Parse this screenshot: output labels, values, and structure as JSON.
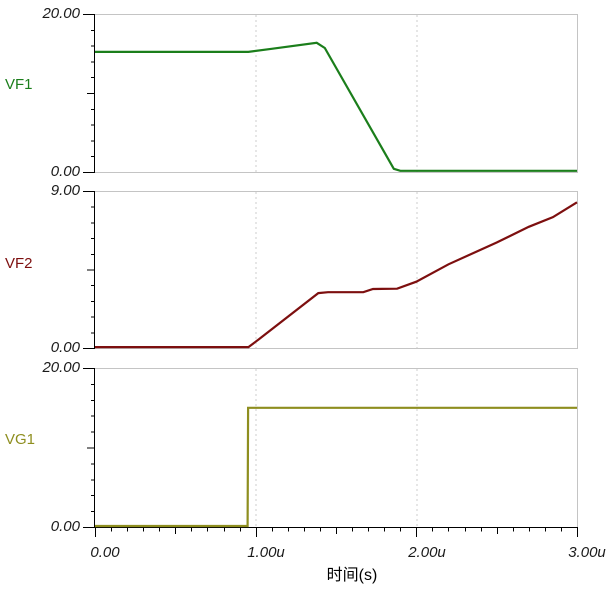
{
  "colors": {
    "background": "#ffffff",
    "axis": "#000000",
    "panel_border": "#c4c4c4",
    "grid_dashed": "#cccccc",
    "tick_label": "#1a1a1a",
    "vf1": "#1b7e1b",
    "vf2": "#7d0f0f",
    "vg1": "#8e8e1f"
  },
  "chart_data": {
    "type": "line",
    "xlabel": "时间(s)",
    "x_unit": "u",
    "xlim": [
      0,
      3
    ],
    "x_ticks": [
      0,
      1,
      2,
      3
    ],
    "x_tick_labels": [
      "0.00",
      "1.00u",
      "2.00u",
      "3.00u"
    ],
    "x_minor_step": 0.1,
    "grid_vlines": [
      1,
      2
    ],
    "legend_position": "left",
    "panels": [
      {
        "label": "VF1",
        "color": "#1b7e1b",
        "ylim": [
          0,
          20
        ],
        "ymax_label": "20.00",
        "ymin_label": "0.00",
        "points": [
          [
            0,
            15.2
          ],
          [
            0.955,
            15.2
          ],
          [
            1.1,
            15.6
          ],
          [
            1.38,
            16.35
          ],
          [
            1.43,
            15.7
          ],
          [
            1.86,
            0.4
          ],
          [
            1.9,
            0.15
          ],
          [
            3,
            0.15
          ]
        ]
      },
      {
        "label": "VF2",
        "color": "#7d0f0f",
        "ylim": [
          0,
          9
        ],
        "ymax_label": "9.00",
        "ymin_label": "0.00",
        "points": [
          [
            0,
            0.05
          ],
          [
            0.955,
            0.05
          ],
          [
            1.02,
            0.5
          ],
          [
            1.39,
            3.15
          ],
          [
            1.45,
            3.2
          ],
          [
            1.67,
            3.2
          ],
          [
            1.73,
            3.38
          ],
          [
            1.88,
            3.4
          ],
          [
            2.0,
            3.8
          ],
          [
            2.2,
            4.8
          ],
          [
            2.5,
            6.05
          ],
          [
            2.7,
            6.95
          ],
          [
            2.85,
            7.5
          ],
          [
            3.0,
            8.35
          ]
        ]
      },
      {
        "label": "VG1",
        "color": "#8e8e1f",
        "ylim": [
          0,
          20
        ],
        "ymax_label": "20.00",
        "ymin_label": "0.00",
        "points": [
          [
            0,
            0.12
          ],
          [
            0.95,
            0.12
          ],
          [
            0.953,
            15.0
          ],
          [
            3,
            15.0
          ]
        ]
      }
    ]
  }
}
